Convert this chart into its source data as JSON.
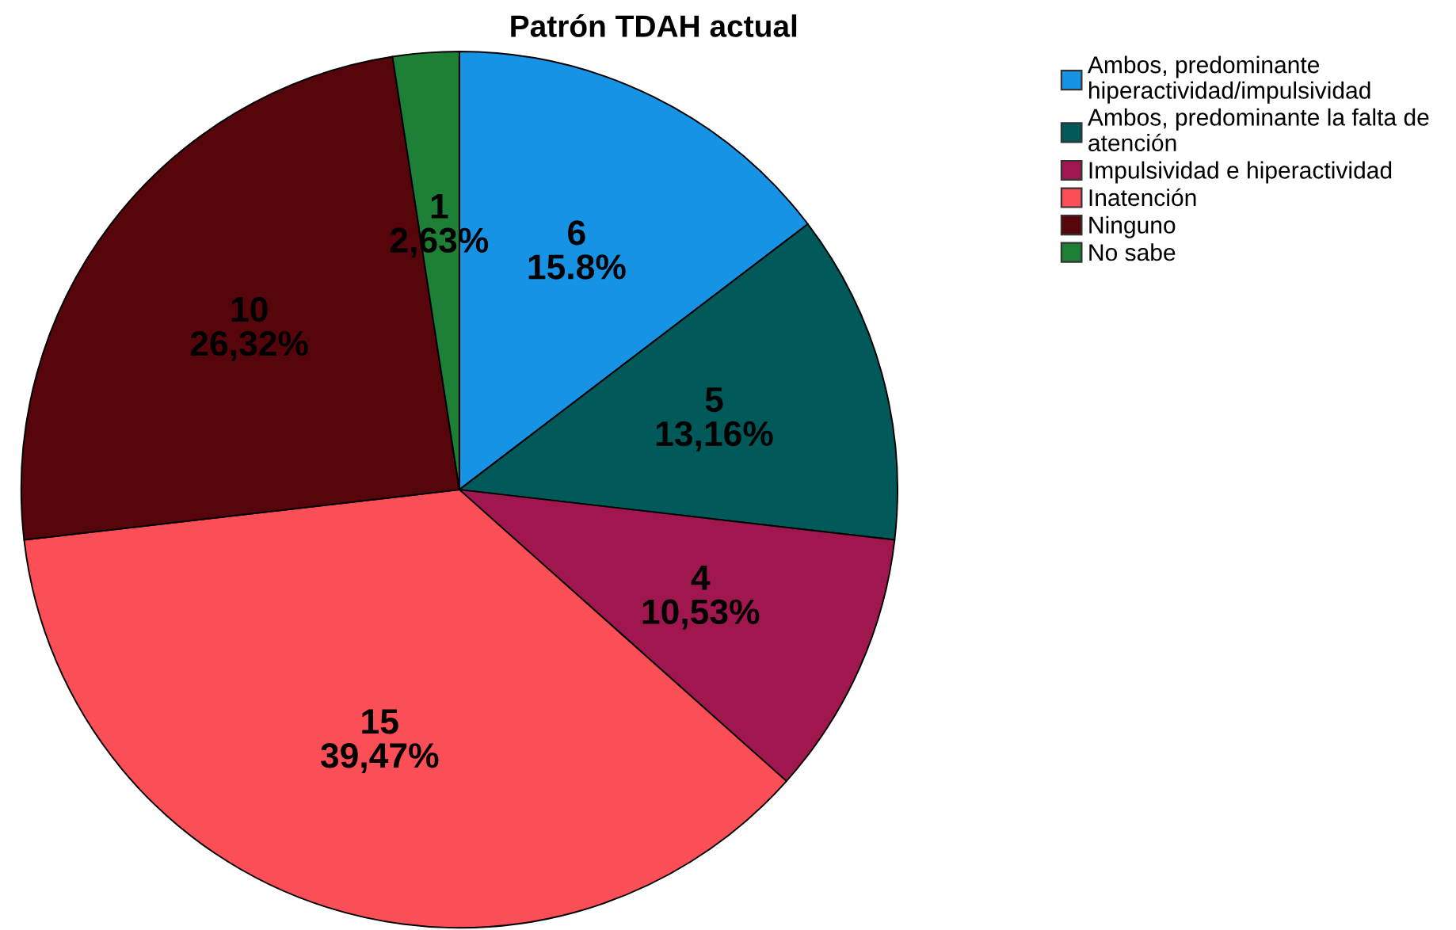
{
  "chart_data": {
    "type": "pie",
    "title": "Patrón TDAH actual",
    "categories": [
      "Ambos, predominante\nhiperactividad/impulsividad",
      "Ambos, predominante la falta de\natención",
      "Impulsividad e hiperactividad",
      "Inatención",
      "Ninguno",
      "No sabe"
    ],
    "values": [
      6,
      5,
      4,
      15,
      10,
      1
    ],
    "colors": [
      "#1793e6",
      "#01595a",
      "#a0174f",
      "#fc4e56",
      "#56050a",
      "#1e7f37"
    ],
    "value_labels": [
      "6\n15.8%",
      "5\n13,16%",
      "4\n10,53%",
      "15\n39,47%",
      "10\n26,32%",
      "1\n2,63%"
    ],
    "legend": "top right"
  }
}
